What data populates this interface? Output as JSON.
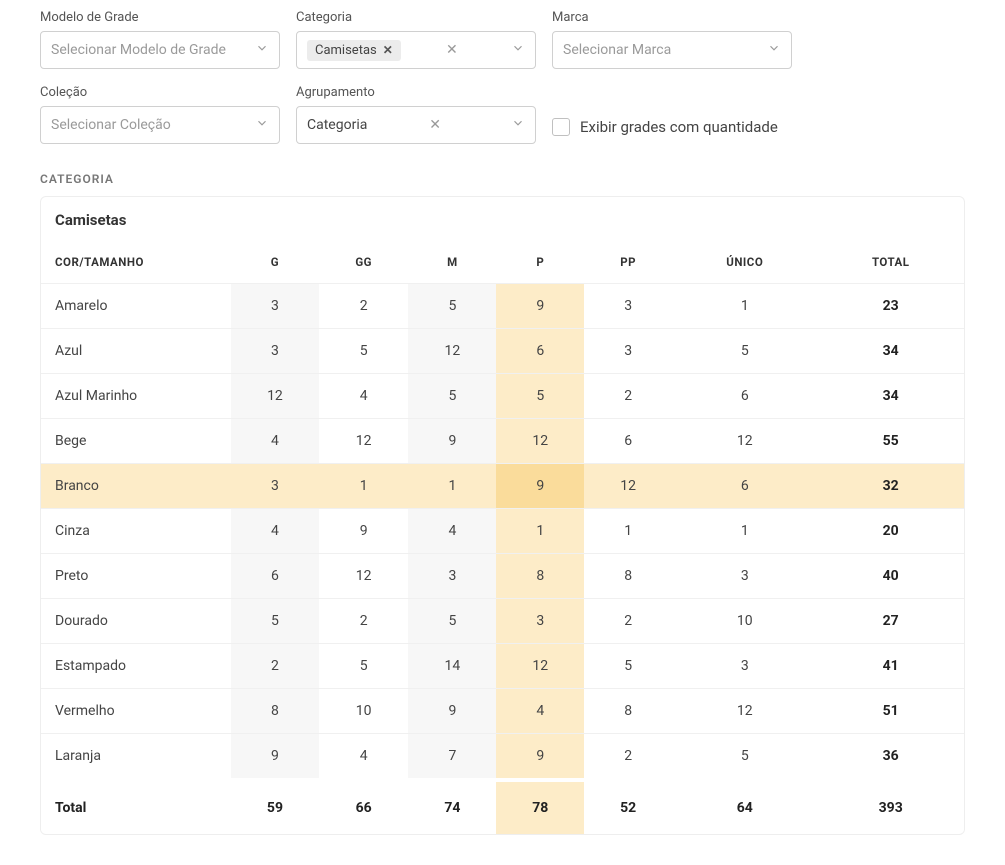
{
  "filters": {
    "modelo": {
      "label": "Modelo de Grade",
      "placeholder": "Selecionar Modelo de Grade"
    },
    "categoria": {
      "label": "Categoria",
      "selected_tag": "Camisetas"
    },
    "marca": {
      "label": "Marca",
      "placeholder": "Selecionar Marca"
    },
    "colecao": {
      "label": "Coleção",
      "placeholder": "Selecionar Coleção"
    },
    "agrupamento": {
      "label": "Agrupamento",
      "value": "Categoria"
    },
    "exibir_checkbox": {
      "label": "Exibir grades com quantidade"
    }
  },
  "section": {
    "label": "CATEGORIA",
    "title": "Camisetas"
  },
  "table": {
    "columns": [
      "COR/TAMANHO",
      "G",
      "GG",
      "M",
      "P",
      "PP",
      "ÚNICO",
      "TOTAL"
    ],
    "highlight_col_index": 4,
    "highlight_row_index": 4,
    "rows": [
      {
        "label": "Amarelo",
        "values": [
          3,
          2,
          5,
          9,
          3,
          1
        ],
        "total": 23
      },
      {
        "label": "Azul",
        "values": [
          3,
          5,
          12,
          6,
          3,
          5
        ],
        "total": 34
      },
      {
        "label": "Azul Marinho",
        "values": [
          12,
          4,
          5,
          5,
          2,
          6
        ],
        "total": 34
      },
      {
        "label": "Bege",
        "values": [
          4,
          12,
          9,
          12,
          6,
          12
        ],
        "total": 55
      },
      {
        "label": "Branco",
        "values": [
          3,
          1,
          1,
          9,
          12,
          6
        ],
        "total": 32
      },
      {
        "label": "Cinza",
        "values": [
          4,
          9,
          4,
          1,
          1,
          1
        ],
        "total": 20
      },
      {
        "label": "Preto",
        "values": [
          6,
          12,
          3,
          8,
          8,
          3
        ],
        "total": 40
      },
      {
        "label": "Dourado",
        "values": [
          5,
          2,
          5,
          3,
          2,
          10
        ],
        "total": 27
      },
      {
        "label": "Estampado",
        "values": [
          2,
          5,
          14,
          12,
          5,
          3
        ],
        "total": 41
      },
      {
        "label": "Vermelho",
        "values": [
          8,
          10,
          9,
          4,
          8,
          12
        ],
        "total": 51
      },
      {
        "label": "Laranja",
        "values": [
          9,
          4,
          7,
          9,
          2,
          5
        ],
        "total": 36
      }
    ],
    "footer": {
      "label": "Total",
      "values": [
        59,
        66,
        74,
        78,
        52,
        64
      ],
      "total": 393
    }
  },
  "style": {
    "highlight_bg": "#fdecc8",
    "highlight_strong_bg": "#fadc9b",
    "alt_cell_bg": "#f7f7f7"
  }
}
